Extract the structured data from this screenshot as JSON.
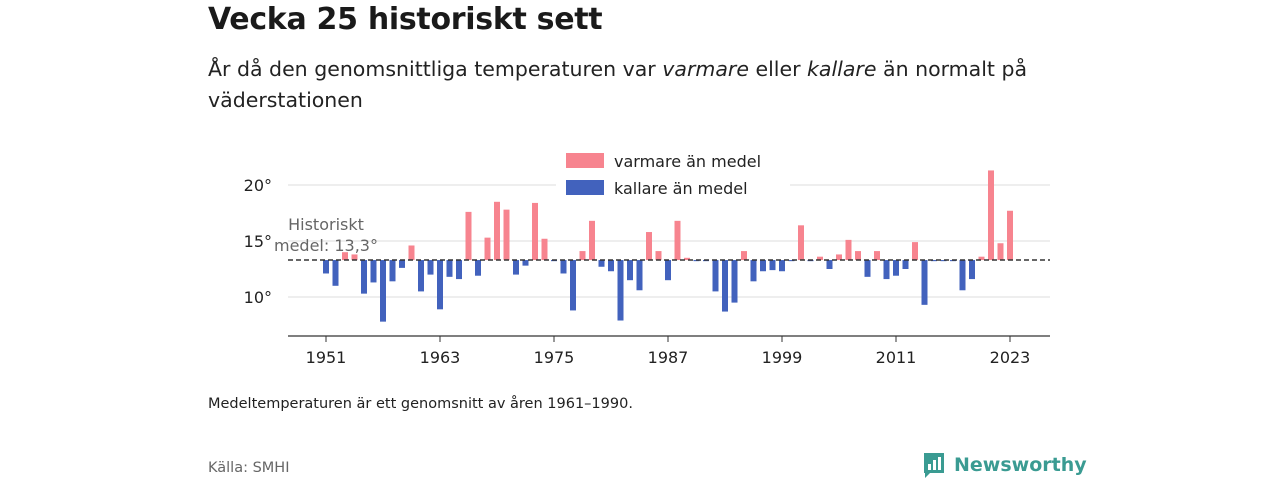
{
  "header": {
    "title": "Vecka 25 historiskt sett",
    "subtitle_part1": "År då den genomsnittliga temperaturen var ",
    "subtitle_warm": "varmare",
    "subtitle_part2": " eller ",
    "subtitle_cold": "kallare",
    "subtitle_part3": " än normalt på väderstationen"
  },
  "footer": {
    "note": "Medeltemperaturen är ett genomsnitt av åren 1961–1990.",
    "source": "Källa: SMHI",
    "brand": "Newsworthy"
  },
  "colors": {
    "warm": "#f7848f",
    "cold": "#4262bd",
    "baseline": "#333333",
    "grid": "#dddddd",
    "brand": "#3a9b92"
  },
  "chart_data": {
    "type": "bar",
    "baseline": 13.3,
    "baseline_label_line1": "Historiskt",
    "baseline_label_line2": "medel: 13,3°",
    "legend": {
      "warm": "varmare än medel",
      "cold": "kallare än medel",
      "placement": "top-center"
    },
    "yticks": [
      10,
      15,
      20
    ],
    "ytick_labels": [
      "10°",
      "15°",
      "20°"
    ],
    "xticks": [
      1951,
      1963,
      1975,
      1987,
      1999,
      2011,
      2023
    ],
    "ylim": [
      6.5,
      21.5
    ],
    "xlim": [
      1947.5,
      2027.5
    ],
    "grid": true,
    "x": [
      1951,
      1952,
      1953,
      1954,
      1955,
      1956,
      1957,
      1958,
      1959,
      1960,
      1961,
      1962,
      1963,
      1964,
      1965,
      1966,
      1967,
      1968,
      1969,
      1970,
      1971,
      1972,
      1973,
      1974,
      1975,
      1976,
      1977,
      1978,
      1979,
      1980,
      1981,
      1982,
      1983,
      1984,
      1985,
      1986,
      1987,
      1988,
      1989,
      1990,
      1991,
      1992,
      1993,
      1994,
      1995,
      1996,
      1997,
      1998,
      1999,
      2000,
      2001,
      2002,
      2003,
      2004,
      2005,
      2006,
      2007,
      2008,
      2009,
      2010,
      2011,
      2012,
      2013,
      2014,
      2015,
      2016,
      2017,
      2018,
      2019,
      2020,
      2021,
      2022,
      2023
    ],
    "values": [
      12.1,
      11.0,
      14.0,
      13.8,
      10.3,
      11.3,
      7.8,
      11.4,
      12.6,
      14.6,
      10.5,
      12.0,
      8.9,
      11.8,
      11.6,
      17.6,
      11.9,
      15.3,
      18.5,
      17.8,
      12.0,
      12.8,
      18.4,
      15.2,
      13.2,
      12.1,
      8.8,
      14.1,
      16.8,
      12.7,
      12.3,
      7.9,
      11.5,
      10.6,
      15.8,
      14.1,
      11.5,
      16.8,
      13.5,
      13.2,
      13.2,
      10.5,
      8.7,
      9.5,
      14.1,
      11.4,
      12.3,
      12.4,
      12.3,
      13.2,
      16.4,
      13.2,
      13.6,
      12.5,
      13.8,
      15.1,
      14.1,
      11.8,
      14.1,
      11.6,
      11.9,
      12.5,
      14.9,
      9.3,
      13.2,
      13.2,
      13.2,
      10.6,
      11.6,
      13.6,
      21.3,
      14.8,
      17.7
    ]
  }
}
